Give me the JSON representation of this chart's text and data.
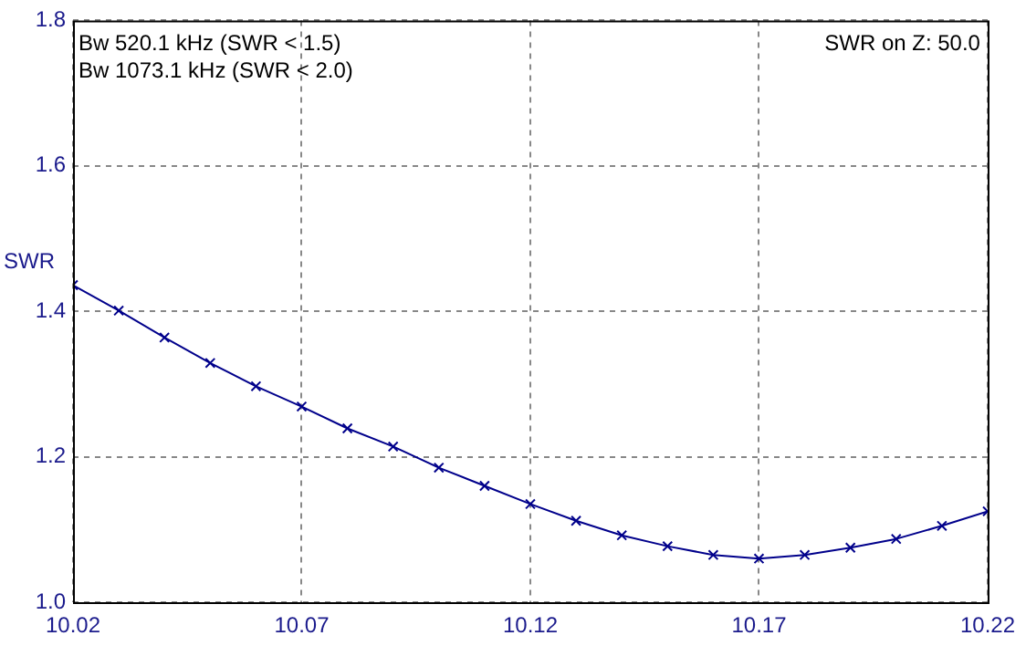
{
  "chart_data": {
    "type": "line",
    "ylabel": "SWR",
    "annotations": [
      "Bw 520.1 kHz (SWR < 1.5)",
      "Bw 1073.1 kHz (SWR < 2.0)",
      "SWR on Z: 50.0"
    ],
    "x": [
      10.02,
      10.03,
      10.04,
      10.05,
      10.06,
      10.07,
      10.08,
      10.09,
      10.1,
      10.11,
      10.12,
      10.13,
      10.14,
      10.15,
      10.16,
      10.17,
      10.18,
      10.19,
      10.2,
      10.21,
      10.22
    ],
    "series": [
      {
        "color": "#00008b",
        "values": [
          1.436,
          1.401,
          1.364,
          1.329,
          1.297,
          1.269,
          1.239,
          1.214,
          1.185,
          1.16,
          1.135,
          1.112,
          1.092,
          1.077,
          1.065,
          1.06,
          1.065,
          1.075,
          1.087,
          1.105,
          1.125
        ]
      }
    ],
    "xlim": [
      10.02,
      10.22
    ],
    "xticks": [
      10.02,
      10.07,
      10.12,
      10.17,
      10.22
    ],
    "ylim": [
      1.0,
      1.8
    ],
    "yticks": [
      {
        "value": 1.0,
        "label": "1.0"
      },
      {
        "value": 1.2,
        "label": "1.2"
      },
      {
        "value": 1.4,
        "label": "1.4"
      },
      {
        "value": 1.6,
        "label": "1.6"
      },
      {
        "value": 1.8,
        "label": "1.8"
      }
    ],
    "grid": true,
    "legend": false,
    "marker": "cross",
    "line_style": "solid"
  }
}
